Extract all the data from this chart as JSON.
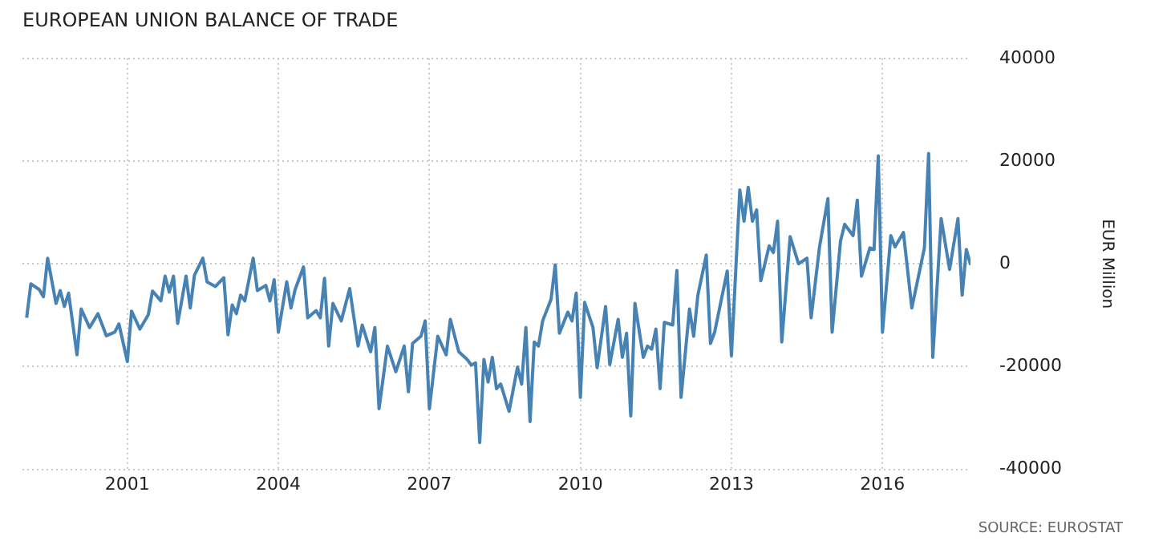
{
  "chart_data": {
    "type": "line",
    "title": "EUROPEAN UNION BALANCE OF TRADE",
    "ylabel": "EUR Million",
    "annotations": [
      "SOURCE: EUROSTAT"
    ],
    "x": [
      "1999-01",
      "1999-02",
      "1999-04",
      "1999-05",
      "1999-06",
      "1999-08",
      "1999-09",
      "1999-10",
      "1999-11",
      "2000-01",
      "2000-02",
      "2000-04",
      "2000-06",
      "2000-08",
      "2000-10",
      "2000-11",
      "2001-01",
      "2001-02",
      "2001-04",
      "2001-06",
      "2001-07",
      "2001-09",
      "2001-10",
      "2001-11",
      "2001-12",
      "2002-01",
      "2002-03",
      "2002-04",
      "2002-05",
      "2002-07",
      "2002-08",
      "2002-10",
      "2002-12",
      "2003-01",
      "2003-02",
      "2003-03",
      "2003-04",
      "2003-05",
      "2003-07",
      "2003-08",
      "2003-10",
      "2003-11",
      "2003-12",
      "2004-01",
      "2004-03",
      "2004-04",
      "2004-05",
      "2004-07",
      "2004-08",
      "2004-10",
      "2004-11",
      "2004-12",
      "2005-01",
      "2005-02",
      "2005-04",
      "2005-06",
      "2005-08",
      "2005-09",
      "2005-11",
      "2005-12",
      "2006-01",
      "2006-03",
      "2006-05",
      "2006-07",
      "2006-08",
      "2006-09",
      "2006-11",
      "2006-12",
      "2007-01",
      "2007-03",
      "2007-05",
      "2007-06",
      "2007-08",
      "2007-10",
      "2007-11",
      "2007-12",
      "2008-01",
      "2008-02",
      "2008-03",
      "2008-04",
      "2008-05",
      "2008-06",
      "2008-08",
      "2008-10",
      "2008-11",
      "2008-12",
      "2009-01",
      "2009-02",
      "2009-03",
      "2009-04",
      "2009-06",
      "2009-07",
      "2009-08",
      "2009-10",
      "2009-11",
      "2009-12",
      "2010-01",
      "2010-02",
      "2010-04",
      "2010-05",
      "2010-07",
      "2010-08",
      "2010-10",
      "2010-11",
      "2010-12",
      "2011-01",
      "2011-02",
      "2011-04",
      "2011-05",
      "2011-06",
      "2011-07",
      "2011-08",
      "2011-09",
      "2011-11",
      "2011-12",
      "2012-01",
      "2012-03",
      "2012-04",
      "2012-05",
      "2012-07",
      "2012-08",
      "2012-09",
      "2012-12",
      "2013-01",
      "2013-03",
      "2013-04",
      "2013-05",
      "2013-06",
      "2013-07",
      "2013-08",
      "2013-10",
      "2013-11",
      "2013-12",
      "2014-01",
      "2014-03",
      "2014-05",
      "2014-07",
      "2014-08",
      "2014-10",
      "2014-12",
      "2015-01",
      "2015-03",
      "2015-04",
      "2015-06",
      "2015-07",
      "2015-08",
      "2015-10",
      "2015-11",
      "2015-12",
      "2016-01",
      "2016-03",
      "2016-04",
      "2016-06",
      "2016-08",
      "2016-11",
      "2016-12",
      "2017-01",
      "2017-03",
      "2017-05",
      "2017-07",
      "2017-08",
      "2017-09",
      "2017-10"
    ],
    "series": [
      {
        "color": "#4682b4",
        "values": [
          -10500,
          -3900,
          -5000,
          -6400,
          1100,
          -7700,
          -5200,
          -8300,
          -5700,
          -17700,
          -8800,
          -12400,
          -9700,
          -14000,
          -13300,
          -11700,
          -19000,
          -9200,
          -12700,
          -9900,
          -5300,
          -7200,
          -2400,
          -5500,
          -2400,
          -11600,
          -2400,
          -8600,
          -2200,
          1100,
          -3500,
          -4400,
          -2700,
          -13800,
          -8000,
          -9700,
          -6100,
          -7200,
          1100,
          -5200,
          -4200,
          -7200,
          -3100,
          -13300,
          -3500,
          -8600,
          -5000,
          -600,
          -10500,
          -9100,
          -10500,
          -2800,
          -16000,
          -7700,
          -11100,
          -4800,
          -16000,
          -11900,
          -17100,
          -12400,
          -28200,
          -16000,
          -21000,
          -16000,
          -24900,
          -15500,
          -14100,
          -11100,
          -28200,
          -14100,
          -17700,
          -10800,
          -17100,
          -18600,
          -19700,
          -19300,
          -34800,
          -18600,
          -23000,
          -18200,
          -24300,
          -23400,
          -28700,
          -20100,
          -23400,
          -12400,
          -30700,
          -15200,
          -16000,
          -11100,
          -6900,
          -200,
          -13500,
          -9400,
          -11100,
          -5700,
          -26000,
          -7500,
          -12400,
          -20200,
          -8300,
          -19600,
          -10800,
          -18200,
          -13500,
          -29600,
          -7700,
          -18200,
          -16000,
          -16600,
          -12700,
          -24300,
          -11400,
          -11900,
          -1300,
          -26000,
          -8800,
          -14100,
          -6100,
          1700,
          -15500,
          -13300,
          -1400,
          -17900,
          14400,
          8300,
          14900,
          8300,
          10500,
          -3300,
          3500,
          2200,
          8300,
          -15200,
          5300,
          0,
          1100,
          -10500,
          3300,
          12700,
          -13300,
          4400,
          7700,
          5500,
          12400,
          -2400,
          3100,
          2800,
          21000,
          -13300,
          5500,
          3300,
          6100,
          -8600,
          3100,
          21500,
          -18200,
          8800,
          -1100,
          8800,
          -6100,
          2800,
          -200
        ]
      }
    ],
    "xlim": [
      "1998-12",
      "2017-10"
    ],
    "xticks": [
      "2001",
      "2004",
      "2007",
      "2010",
      "2013",
      "2016"
    ],
    "ylim": [
      -40000,
      40000
    ],
    "yticks": [
      -40000,
      -20000,
      0,
      20000,
      40000
    ],
    "grid": true,
    "legend": false,
    "marker": "none",
    "line_style": "solid"
  }
}
